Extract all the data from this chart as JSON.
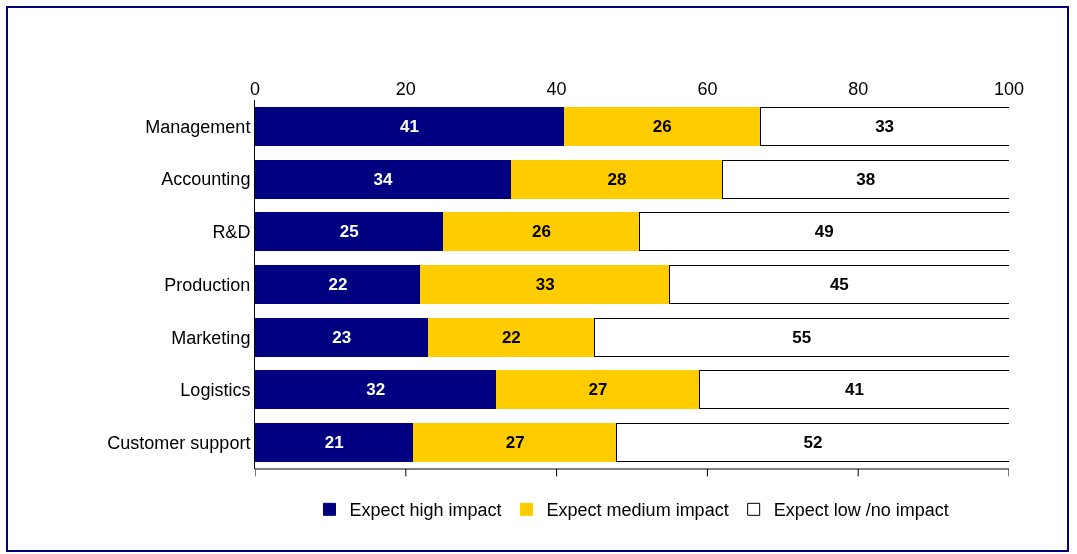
{
  "chart_data": {
    "type": "bar",
    "orientation": "horizontal",
    "stacked": true,
    "data_labels": true,
    "grid": false,
    "legend": "bottom",
    "categories": [
      "Management",
      "Accounting",
      "R&D",
      "Production",
      "Marketing",
      "Logistics",
      "Customer support"
    ],
    "xlim": [
      0,
      100
    ],
    "xticks": [
      0,
      20,
      40,
      60,
      80,
      100
    ],
    "series": [
      {
        "name": "Expect high impact",
        "color": "#000080",
        "values": [
          41,
          34,
          25,
          22,
          23,
          32,
          21
        ]
      },
      {
        "name": "Expect medium impact",
        "color": "#ffcc00",
        "values": [
          26,
          28,
          26,
          33,
          22,
          27,
          27
        ]
      },
      {
        "name": "Expect low /no impact",
        "color": "#ffffff",
        "values": [
          33,
          38,
          49,
          45,
          55,
          41,
          52
        ]
      }
    ]
  }
}
